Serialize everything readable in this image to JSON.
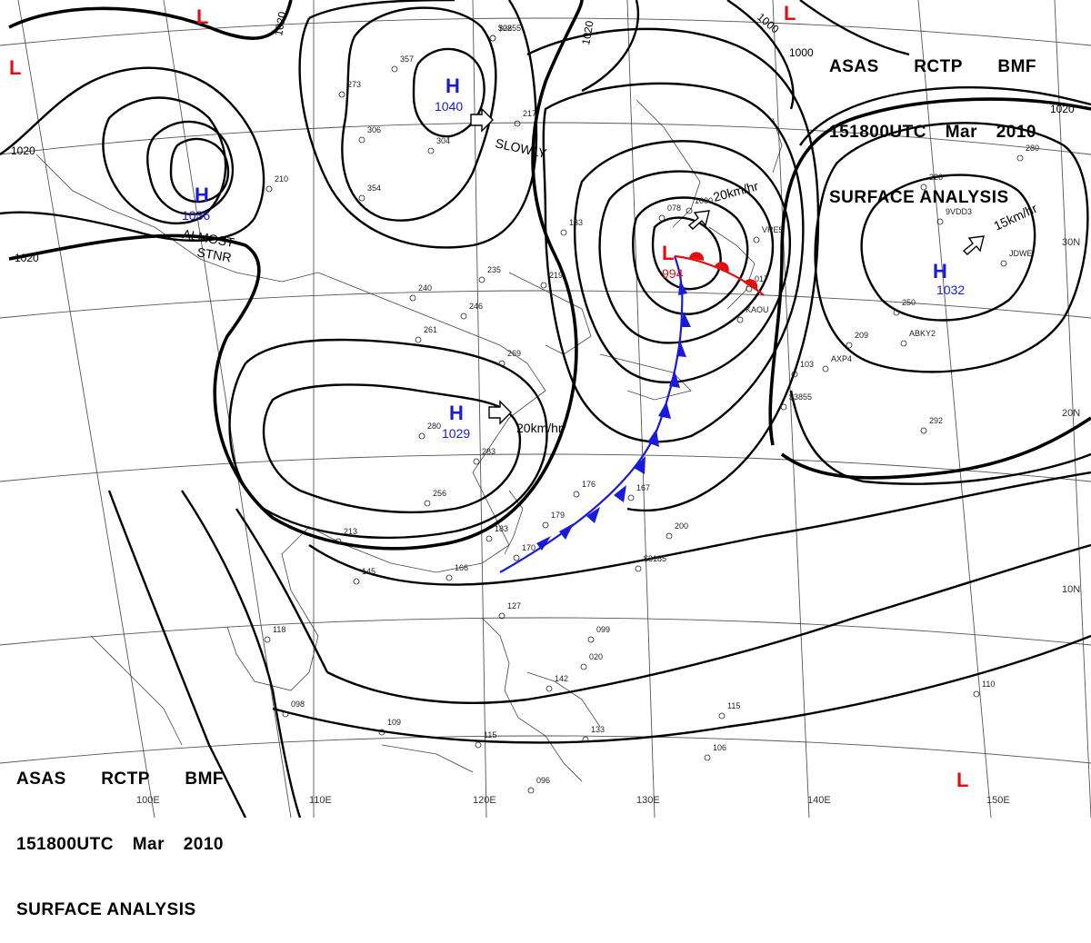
{
  "chart_title": {
    "line1": [
      "ASAS",
      "RCTP",
      "BMF"
    ],
    "line2": [
      "151800UTC",
      "Mar",
      "2010"
    ],
    "line3": "SURFACE ANALYSIS"
  },
  "grid_labels": {
    "lon": [
      "110E",
      "120E",
      "130E",
      "140E",
      "150E",
      "100E"
    ],
    "lat": [
      "30N",
      "20N",
      "10N"
    ]
  },
  "isobar_labels": [
    "1020",
    "1020",
    "1020",
    "1020",
    "1000",
    "1000",
    "1020"
  ],
  "pressure_centers": [
    {
      "type": "H",
      "value": "1040"
    },
    {
      "type": "H",
      "value": "1036"
    },
    {
      "type": "H",
      "value": "1029"
    },
    {
      "type": "H",
      "value": "1032"
    },
    {
      "type": "L",
      "value": "994"
    },
    {
      "type": "L",
      "value": ""
    },
    {
      "type": "L",
      "value": ""
    },
    {
      "type": "L",
      "value": ""
    },
    {
      "type": "L",
      "value": ""
    }
  ],
  "motion_labels": {
    "slowly": "SLOWLY",
    "almost": "ALMOST",
    "stnr": "STNR",
    "h1029_speed": "20km/hr",
    "low_speed": "20km/hr",
    "h1032_speed": "15km/hr"
  },
  "station_samples": [
    "308",
    "357",
    "273",
    "306",
    "304",
    "217",
    "354",
    "210",
    "133",
    "235",
    "219",
    "246",
    "261",
    "240",
    "269",
    "280",
    "283",
    "256",
    "213",
    "145",
    "166",
    "176",
    "167",
    "179",
    "183",
    "170",
    "200",
    "127",
    "099",
    "142",
    "133",
    "115",
    "109",
    "118",
    "098",
    "115",
    "106",
    "096",
    "103",
    "209",
    "250",
    "292",
    "226",
    "280",
    "110",
    "078",
    "1000",
    "017",
    "020",
    "KAOU",
    "VRE5",
    "JDWE",
    "ABKY2",
    "AXP4",
    "9VDD3",
    "$3855",
    "$3185",
    "$2255"
  ],
  "colors": {
    "high": "#1a1adb",
    "low": "#e01010",
    "cold_front": "#1a1adb",
    "warm_front": "#e01010",
    "isobar": "#000000"
  }
}
